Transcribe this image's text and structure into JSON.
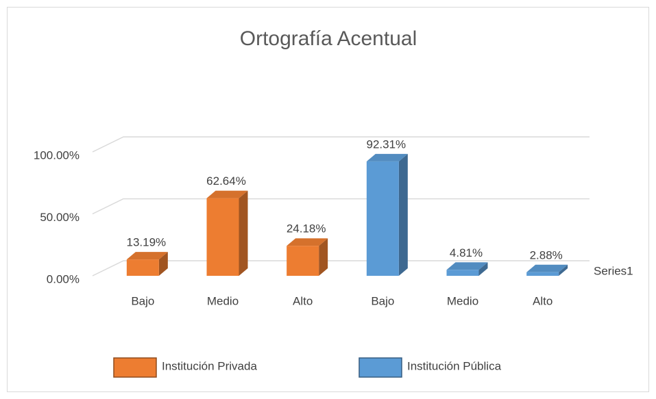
{
  "chart_data": {
    "type": "bar3d",
    "title": "Ortografía Acentual",
    "categories": [
      "Bajo",
      "Medio",
      "Alto",
      "Bajo",
      "Medio",
      "Alto"
    ],
    "series": [
      {
        "name": "Institución Privada",
        "color": "#ED7D31",
        "values": [
          13.19,
          62.64,
          24.18,
          null,
          null,
          null
        ],
        "value_labels": [
          "13.19%",
          "62.64%",
          "24.18%",
          null,
          null,
          null
        ]
      },
      {
        "name": "Institución Pública",
        "color": "#5B9BD5",
        "values": [
          null,
          null,
          null,
          92.31,
          4.81,
          2.88
        ],
        "value_labels": [
          null,
          null,
          null,
          "92.31%",
          "4.81%",
          "2.88%"
        ]
      }
    ],
    "depth_category": "Series1",
    "ylim": [
      0,
      100
    ],
    "yticks": [
      {
        "value": 0,
        "label": "0.00%"
      },
      {
        "value": 50,
        "label": "50.00%"
      },
      {
        "value": 100,
        "label": "100.00%"
      }
    ],
    "grid": true,
    "legend": "bottom"
  }
}
